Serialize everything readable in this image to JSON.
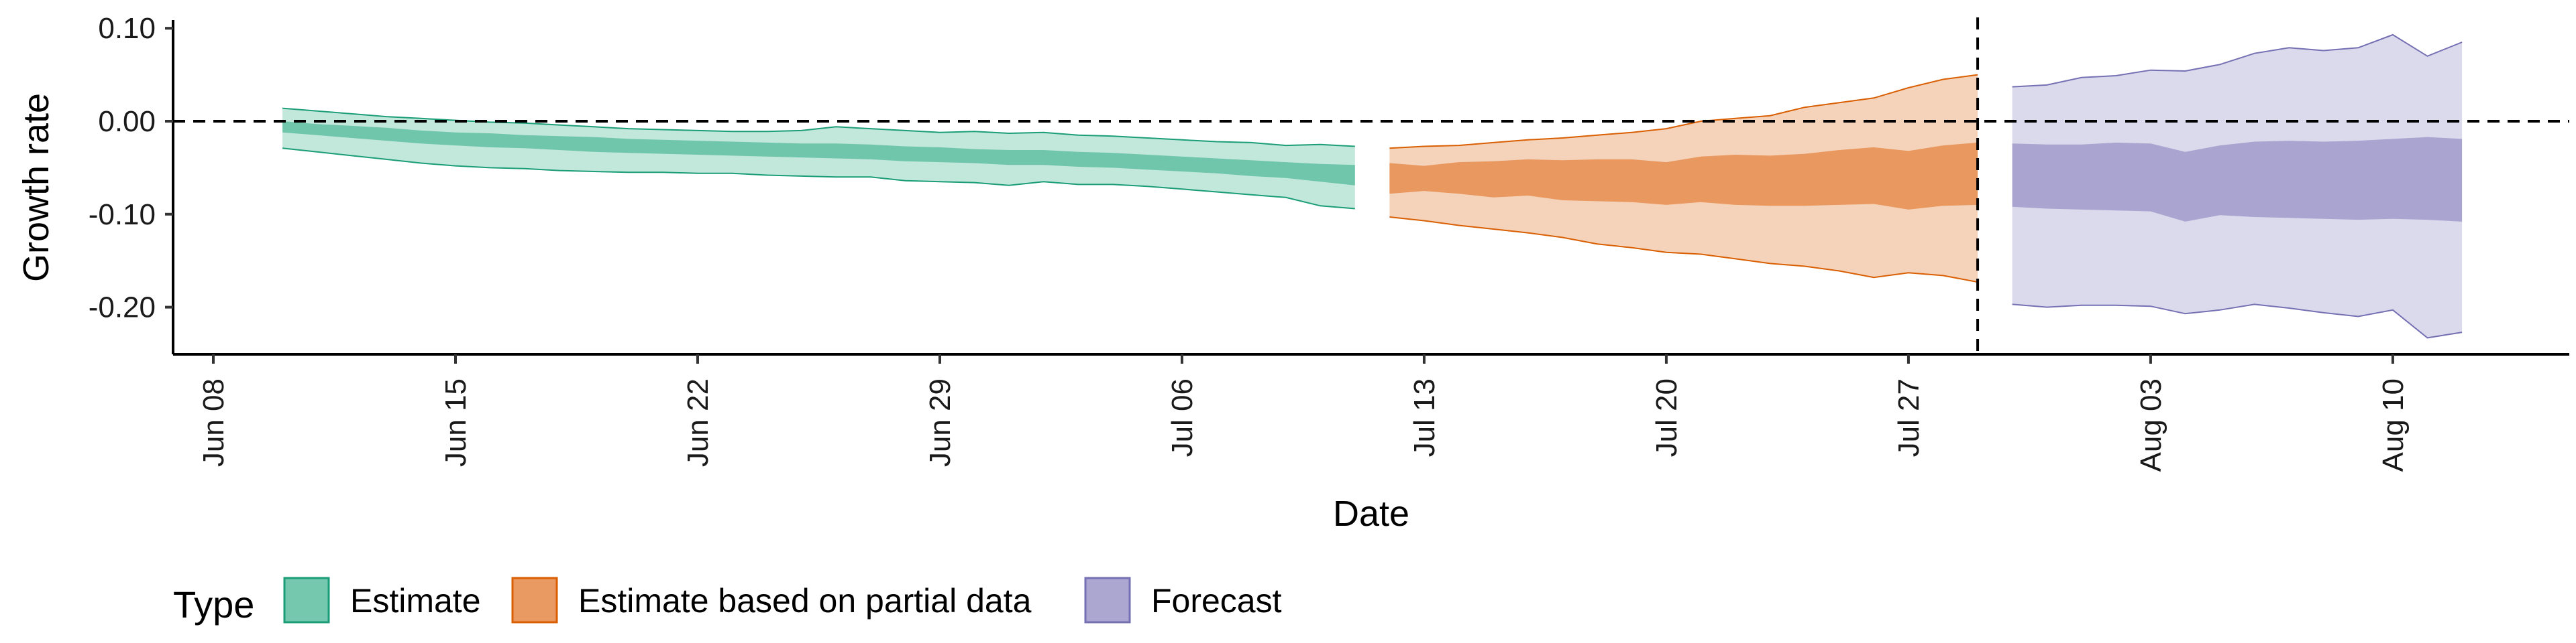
{
  "chart_data": {
    "type": "area",
    "xlabel": "Date",
    "ylabel": "Growth rate",
    "ylim": [
      -0.25,
      0.105
    ],
    "xlim": [
      "2020-06-08",
      "2020-08-16"
    ],
    "x_ticks": [
      {
        "date": "2020-06-08",
        "label": "Jun 08"
      },
      {
        "date": "2020-06-15",
        "label": "Jun 15"
      },
      {
        "date": "2020-06-22",
        "label": "Jun 22"
      },
      {
        "date": "2020-06-29",
        "label": "Jun 29"
      },
      {
        "date": "2020-07-06",
        "label": "Jul 06"
      },
      {
        "date": "2020-07-13",
        "label": "Jul 13"
      },
      {
        "date": "2020-07-20",
        "label": "Jul 20"
      },
      {
        "date": "2020-07-27",
        "label": "Jul 27"
      },
      {
        "date": "2020-08-03",
        "label": "Aug 03"
      },
      {
        "date": "2020-08-10",
        "label": "Aug 10"
      }
    ],
    "y_ticks": [
      {
        "value": 0.1,
        "label": "0.10"
      },
      {
        "value": 0.0,
        "label": "0.00"
      },
      {
        "value": -0.1,
        "label": "-0.10"
      },
      {
        "value": -0.2,
        "label": "-0.20"
      }
    ],
    "reference_lines": {
      "horizontal_y": 0.0,
      "vertical_date": "2020-07-29"
    },
    "legend": {
      "title": "Type",
      "position": "bottom"
    },
    "series": [
      {
        "name": "Estimate",
        "fill_color": "#66C2A5",
        "edge_color": "#1B9E77",
        "light_opacity": 0.4,
        "dark_opacity": 0.9,
        "x": [
          "2020-06-10",
          "2020-06-11",
          "2020-06-12",
          "2020-06-13",
          "2020-06-14",
          "2020-06-15",
          "2020-06-16",
          "2020-06-17",
          "2020-06-18",
          "2020-06-19",
          "2020-06-20",
          "2020-06-21",
          "2020-06-22",
          "2020-06-23",
          "2020-06-24",
          "2020-06-25",
          "2020-06-26",
          "2020-06-27",
          "2020-06-28",
          "2020-06-29",
          "2020-06-30",
          "2020-07-01",
          "2020-07-02",
          "2020-07-03",
          "2020-07-04",
          "2020-07-05",
          "2020-07-06",
          "2020-07-07",
          "2020-07-08",
          "2020-07-09",
          "2020-07-10",
          "2020-07-11"
        ],
        "lower90": [
          -0.029,
          -0.033,
          -0.037,
          -0.041,
          -0.045,
          -0.048,
          -0.05,
          -0.051,
          -0.053,
          -0.054,
          -0.055,
          -0.055,
          -0.056,
          -0.056,
          -0.058,
          -0.059,
          -0.06,
          -0.06,
          -0.064,
          -0.065,
          -0.066,
          -0.069,
          -0.065,
          -0.068,
          -0.068,
          -0.07,
          -0.073,
          -0.076,
          -0.079,
          -0.082,
          -0.091,
          -0.094
        ],
        "lower50": [
          -0.012,
          -0.015,
          -0.018,
          -0.021,
          -0.024,
          -0.026,
          -0.028,
          -0.029,
          -0.031,
          -0.033,
          -0.034,
          -0.035,
          -0.036,
          -0.037,
          -0.038,
          -0.039,
          -0.04,
          -0.041,
          -0.043,
          -0.044,
          -0.045,
          -0.047,
          -0.047,
          -0.049,
          -0.05,
          -0.052,
          -0.054,
          -0.056,
          -0.059,
          -0.061,
          -0.065,
          -0.069
        ],
        "upper50": [
          0.0,
          -0.003,
          -0.005,
          -0.007,
          -0.01,
          -0.012,
          -0.013,
          -0.015,
          -0.016,
          -0.017,
          -0.019,
          -0.02,
          -0.021,
          -0.022,
          -0.023,
          -0.024,
          -0.024,
          -0.025,
          -0.027,
          -0.028,
          -0.03,
          -0.031,
          -0.031,
          -0.033,
          -0.034,
          -0.036,
          -0.038,
          -0.04,
          -0.042,
          -0.044,
          -0.046,
          -0.047
        ],
        "upper90": [
          0.014,
          0.011,
          0.008,
          0.005,
          0.003,
          0.001,
          -0.001,
          -0.002,
          -0.004,
          -0.006,
          -0.008,
          -0.009,
          -0.01,
          -0.011,
          -0.011,
          -0.01,
          -0.006,
          -0.008,
          -0.01,
          -0.012,
          -0.011,
          -0.013,
          -0.012,
          -0.015,
          -0.016,
          -0.018,
          -0.02,
          -0.022,
          -0.023,
          -0.026,
          -0.025,
          -0.027
        ]
      },
      {
        "name": "Estimate based on partial data",
        "fill_color": "#E8955A",
        "edge_color": "#D95F02",
        "light_opacity": 0.42,
        "dark_opacity": 0.95,
        "x": [
          "2020-07-12",
          "2020-07-13",
          "2020-07-14",
          "2020-07-15",
          "2020-07-16",
          "2020-07-17",
          "2020-07-18",
          "2020-07-19",
          "2020-07-20",
          "2020-07-21",
          "2020-07-22",
          "2020-07-23",
          "2020-07-24",
          "2020-07-25",
          "2020-07-26",
          "2020-07-27",
          "2020-07-28",
          "2020-07-29"
        ],
        "lower90": [
          -0.103,
          -0.107,
          -0.112,
          -0.116,
          -0.12,
          -0.125,
          -0.132,
          -0.136,
          -0.141,
          -0.143,
          -0.148,
          -0.153,
          -0.156,
          -0.161,
          -0.168,
          -0.163,
          -0.166,
          -0.173
        ],
        "lower50": [
          -0.078,
          -0.075,
          -0.078,
          -0.082,
          -0.08,
          -0.085,
          -0.086,
          -0.087,
          -0.09,
          -0.087,
          -0.09,
          -0.091,
          -0.091,
          -0.09,
          -0.089,
          -0.095,
          -0.091,
          -0.09
        ],
        "upper50": [
          -0.045,
          -0.048,
          -0.044,
          -0.043,
          -0.041,
          -0.042,
          -0.041,
          -0.041,
          -0.044,
          -0.038,
          -0.036,
          -0.037,
          -0.035,
          -0.031,
          -0.028,
          -0.032,
          -0.026,
          -0.023
        ],
        "upper90": [
          -0.029,
          -0.027,
          -0.026,
          -0.023,
          -0.02,
          -0.018,
          -0.015,
          -0.012,
          -0.008,
          0.0,
          0.003,
          0.006,
          0.015,
          0.02,
          0.025,
          0.036,
          0.045,
          0.05
        ]
      },
      {
        "name": "Forecast",
        "fill_color": "#A6A2CF",
        "edge_color": "#7570B3",
        "light_opacity": 0.4,
        "dark_opacity": 0.95,
        "x": [
          "2020-07-30",
          "2020-07-31",
          "2020-08-01",
          "2020-08-02",
          "2020-08-03",
          "2020-08-04",
          "2020-08-05",
          "2020-08-06",
          "2020-08-07",
          "2020-08-08",
          "2020-08-09",
          "2020-08-10",
          "2020-08-11",
          "2020-08-12"
        ],
        "lower90": [
          -0.197,
          -0.2,
          -0.198,
          -0.198,
          -0.199,
          -0.207,
          -0.203,
          -0.197,
          -0.201,
          -0.206,
          -0.21,
          -0.203,
          -0.233,
          -0.227
        ],
        "lower50": [
          -0.092,
          -0.094,
          -0.095,
          -0.096,
          -0.097,
          -0.108,
          -0.101,
          -0.103,
          -0.104,
          -0.105,
          -0.106,
          -0.105,
          -0.106,
          -0.108
        ],
        "upper50": [
          -0.024,
          -0.025,
          -0.025,
          -0.023,
          -0.024,
          -0.033,
          -0.026,
          -0.022,
          -0.021,
          -0.022,
          -0.021,
          -0.019,
          -0.017,
          -0.019
        ],
        "upper90": [
          0.037,
          0.039,
          0.047,
          0.049,
          0.055,
          0.054,
          0.061,
          0.073,
          0.079,
          0.076,
          0.079,
          0.093,
          0.07,
          0.085
        ]
      }
    ]
  }
}
